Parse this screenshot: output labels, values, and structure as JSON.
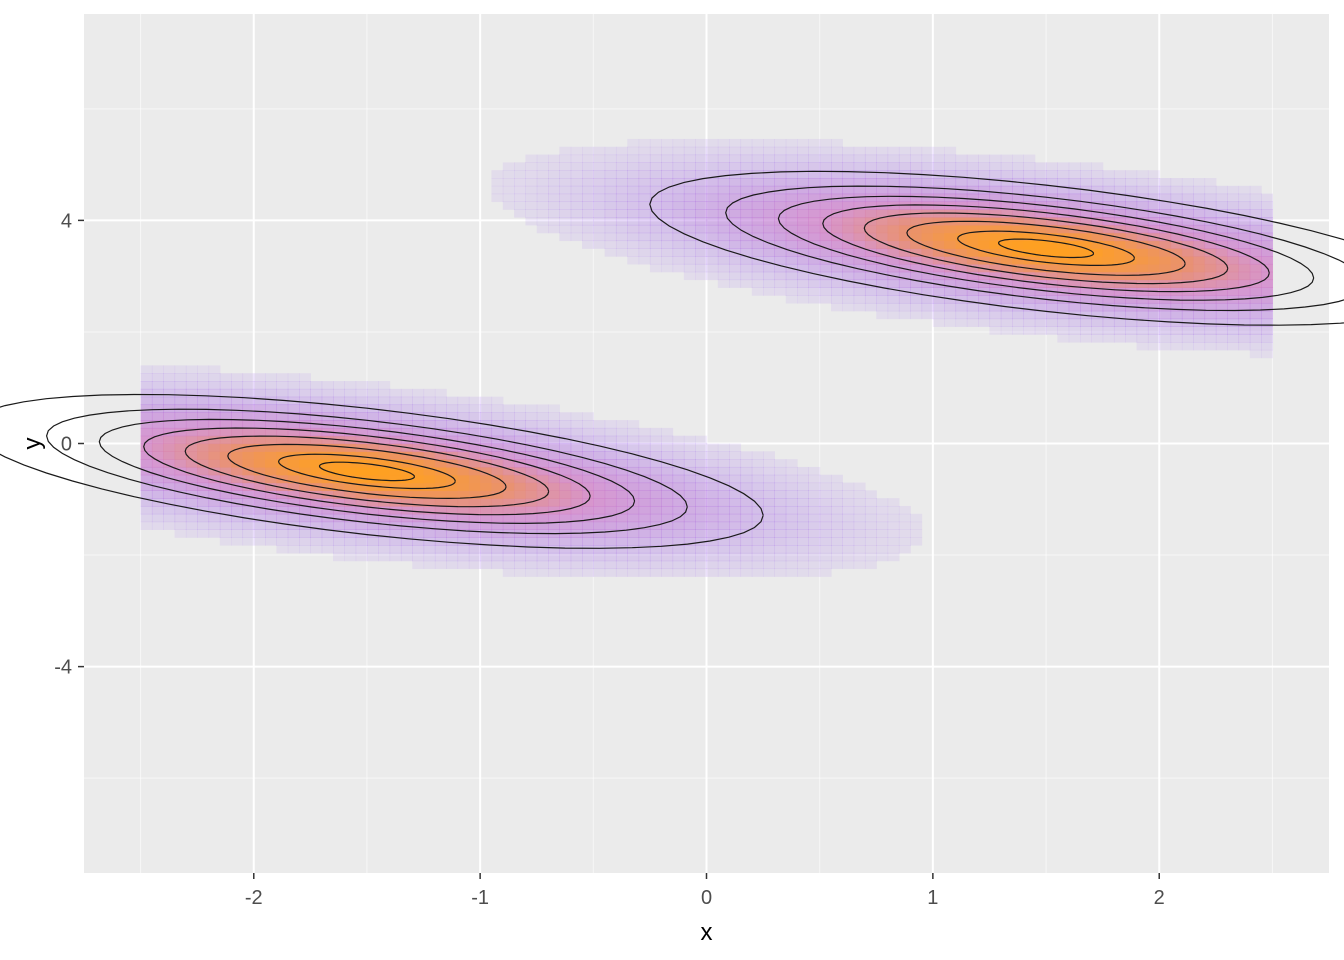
{
  "chart_data": {
    "type": "heatmap",
    "subtype": "2d-density-with-contours",
    "title": "",
    "xlabel": "x",
    "ylabel": "y",
    "xlim": [
      -2.75,
      2.75
    ],
    "ylim": [
      -7.7,
      7.7
    ],
    "x_ticks": [
      -2,
      -1,
      0,
      1,
      2
    ],
    "x_tick_labels": [
      "-2",
      "-1",
      "0",
      "1",
      "2"
    ],
    "y_ticks": [
      -4,
      0,
      4
    ],
    "y_tick_labels": [
      "-4",
      "0",
      "4"
    ],
    "grid": true,
    "legend": "none",
    "raster_extent": {
      "x": [
        -2.5,
        2.5
      ],
      "y": [
        -7.0,
        7.0
      ]
    },
    "density_peaks": [
      {
        "x": -1.5,
        "y": -0.5,
        "sx": 0.85,
        "sy": 0.55,
        "slope": -0.45
      },
      {
        "x": 1.5,
        "y": 3.5,
        "sx": 0.85,
        "sy": 0.55,
        "slope": -0.45
      }
    ],
    "contour_levels": [
      0.12,
      0.25,
      0.38,
      0.51,
      0.64,
      0.77,
      0.9,
      0.97
    ],
    "colors": {
      "panel_bg": "#ebebeb",
      "grid_major": "#ffffff",
      "low_density": "#a070f0",
      "mid_density": "#d080c8",
      "high_density": "#ffa020",
      "contour": "#1a1a1a"
    }
  }
}
